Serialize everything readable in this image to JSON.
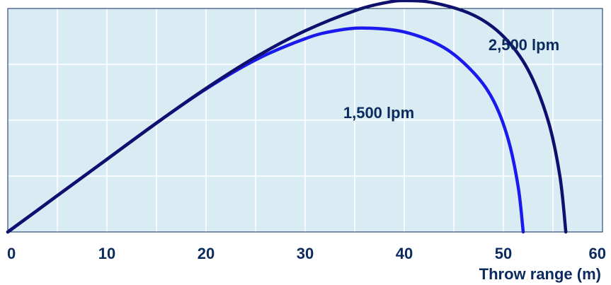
{
  "chart_data": {
    "type": "line",
    "title": "",
    "xlabel": "Throw range (m)",
    "ylabel": "",
    "xlim": [
      0,
      60
    ],
    "ylim": [
      0,
      40
    ],
    "x_ticks": [
      "0",
      "10",
      "20",
      "30",
      "40",
      "50",
      "60"
    ],
    "grid": true,
    "background_color": "#d9ebf3",
    "grid_color": "#ffffff",
    "border_color": "#0b2a5e",
    "series": [
      {
        "name": "1,500 lpm",
        "color": "#1a1aee",
        "points": [
          [
            0,
            0
          ],
          [
            5,
            6.5
          ],
          [
            10,
            13
          ],
          [
            15,
            19.5
          ],
          [
            20,
            25.6
          ],
          [
            25,
            30.8
          ],
          [
            30,
            34.6
          ],
          [
            33,
            36
          ],
          [
            36,
            36.5
          ],
          [
            40,
            35.8
          ],
          [
            44,
            33
          ],
          [
            47,
            28.5
          ],
          [
            49,
            23.5
          ],
          [
            50.5,
            16.5
          ],
          [
            51.5,
            8
          ],
          [
            52,
            0
          ]
        ]
      },
      {
        "name": "2,500 lpm",
        "color": "#0f0f6e",
        "points": [
          [
            0,
            0
          ],
          [
            5,
            6.5
          ],
          [
            10,
            13
          ],
          [
            15,
            19.5
          ],
          [
            20,
            25.7
          ],
          [
            25,
            31.3
          ],
          [
            30,
            36
          ],
          [
            35,
            39.6
          ],
          [
            38,
            41
          ],
          [
            40,
            41.4
          ],
          [
            43,
            41
          ],
          [
            47,
            38.8
          ],
          [
            50,
            35
          ],
          [
            52.5,
            29
          ],
          [
            54.5,
            20
          ],
          [
            55.7,
            10
          ],
          [
            56.3,
            0
          ]
        ]
      }
    ]
  }
}
